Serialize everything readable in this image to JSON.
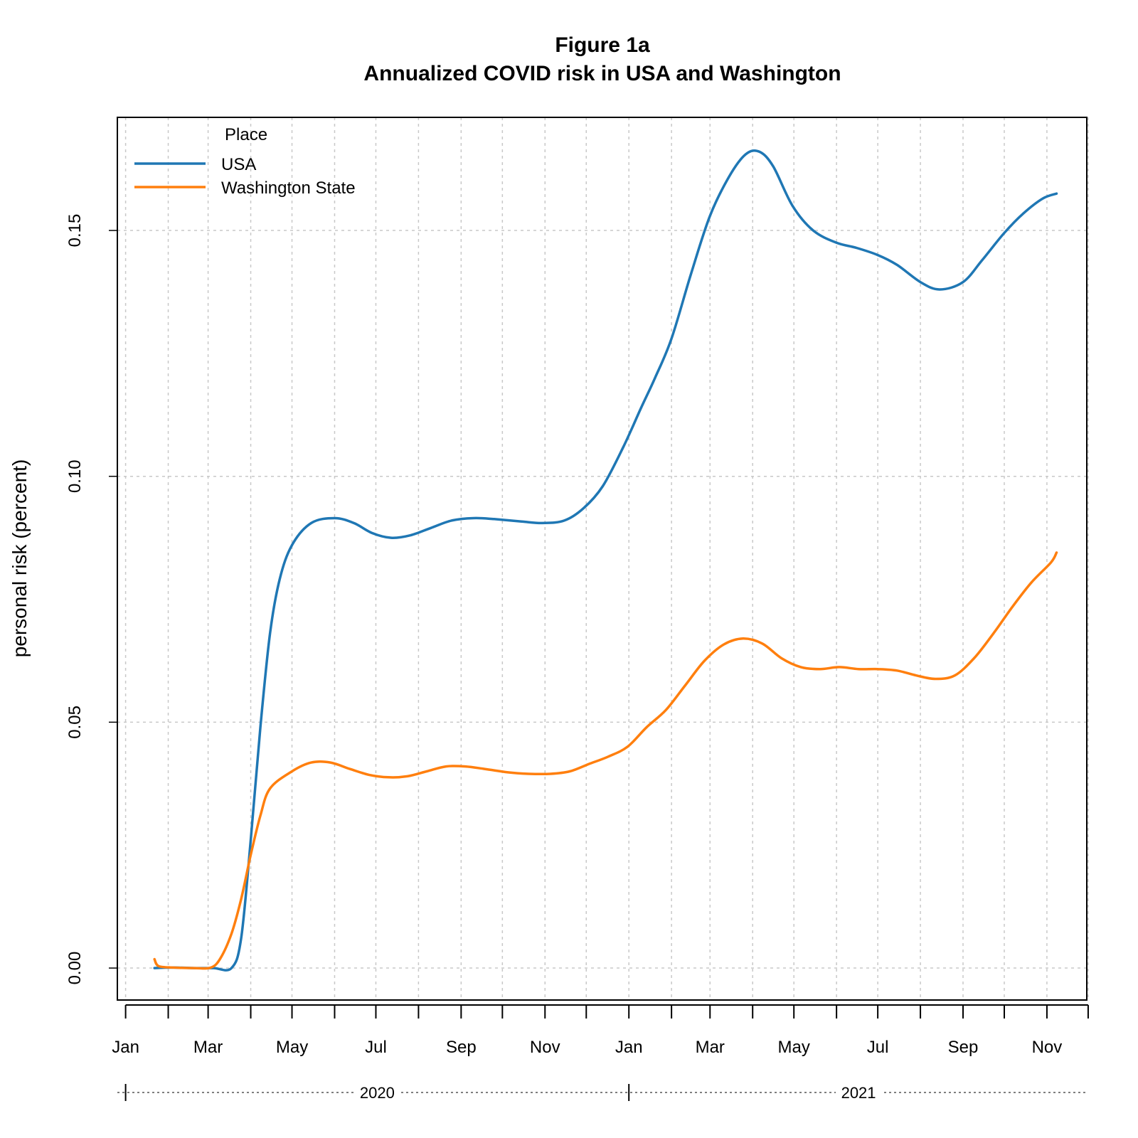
{
  "chart_data": {
    "type": "line",
    "title": "Figure 1a",
    "subtitle": "Annualized COVID risk in USA and Washington",
    "ylabel": "personal risk (percent)",
    "xlabel": "",
    "ylim": [
      -0.0065,
      0.173
    ],
    "xlim": [
      "2019-12-26",
      "2021-11-30"
    ],
    "y_ticks": [
      {
        "value": 0.0,
        "label": "0.00"
      },
      {
        "value": 0.05,
        "label": "0.05"
      },
      {
        "value": 0.1,
        "label": "0.10"
      },
      {
        "value": 0.15,
        "label": "0.15"
      }
    ],
    "x_ticks": [
      {
        "date": "2020-01-01",
        "label": "Jan"
      },
      {
        "date": "2020-02-01",
        "label": ""
      },
      {
        "date": "2020-03-01",
        "label": "Mar"
      },
      {
        "date": "2020-04-01",
        "label": ""
      },
      {
        "date": "2020-05-01",
        "label": "May"
      },
      {
        "date": "2020-06-01",
        "label": ""
      },
      {
        "date": "2020-07-01",
        "label": "Jul"
      },
      {
        "date": "2020-08-01",
        "label": ""
      },
      {
        "date": "2020-09-01",
        "label": "Sep"
      },
      {
        "date": "2020-10-01",
        "label": ""
      },
      {
        "date": "2020-11-01",
        "label": "Nov"
      },
      {
        "date": "2020-12-01",
        "label": ""
      },
      {
        "date": "2021-01-01",
        "label": "Jan"
      },
      {
        "date": "2021-02-01",
        "label": ""
      },
      {
        "date": "2021-03-01",
        "label": "Mar"
      },
      {
        "date": "2021-04-01",
        "label": ""
      },
      {
        "date": "2021-05-01",
        "label": "May"
      },
      {
        "date": "2021-06-01",
        "label": ""
      },
      {
        "date": "2021-07-01",
        "label": "Jul"
      },
      {
        "date": "2021-08-01",
        "label": ""
      },
      {
        "date": "2021-09-01",
        "label": "Sep"
      },
      {
        "date": "2021-10-01",
        "label": ""
      },
      {
        "date": "2021-11-01",
        "label": "Nov"
      },
      {
        "date": "2021-12-01",
        "label": ""
      }
    ],
    "years": [
      {
        "label": "2020",
        "start": "2020-01-01",
        "end": "2021-01-01"
      },
      {
        "label": "2021",
        "start": "2021-01-01",
        "end": "2021-12-01"
      }
    ],
    "grid": true,
    "legend": {
      "title": "Place",
      "position": "top-left"
    },
    "series": [
      {
        "name": "USA",
        "color": "#1f77b4",
        "points": [
          [
            "2020-01-22",
            0.0
          ],
          [
            "2020-02-05",
            0.0001
          ],
          [
            "2020-02-20",
            0.0
          ],
          [
            "2020-03-05",
            0.0
          ],
          [
            "2020-03-18",
            0.0
          ],
          [
            "2020-03-25",
            0.006
          ],
          [
            "2020-04-01",
            0.026
          ],
          [
            "2020-04-08",
            0.049
          ],
          [
            "2020-04-15",
            0.068
          ],
          [
            "2020-04-22",
            0.079
          ],
          [
            "2020-05-01",
            0.086
          ],
          [
            "2020-05-15",
            0.0905
          ],
          [
            "2020-06-01",
            0.0915
          ],
          [
            "2020-06-15",
            0.0905
          ],
          [
            "2020-06-28",
            0.0885
          ],
          [
            "2020-07-12",
            0.0875
          ],
          [
            "2020-07-26",
            0.088
          ],
          [
            "2020-08-10",
            0.0895
          ],
          [
            "2020-08-25",
            0.091
          ],
          [
            "2020-09-10",
            0.0915
          ],
          [
            "2020-09-25",
            0.0913
          ],
          [
            "2020-10-15",
            0.0908
          ],
          [
            "2020-10-30",
            0.0905
          ],
          [
            "2020-11-15",
            0.091
          ],
          [
            "2020-11-29",
            0.0935
          ],
          [
            "2020-12-13",
            0.098
          ],
          [
            "2020-12-28",
            0.106
          ],
          [
            "2021-01-10",
            0.114
          ],
          [
            "2021-01-20",
            0.12
          ],
          [
            "2021-02-01",
            0.128
          ],
          [
            "2021-02-15",
            0.141
          ],
          [
            "2021-03-01",
            0.153
          ],
          [
            "2021-03-15",
            0.161
          ],
          [
            "2021-03-27",
            0.1655
          ],
          [
            "2021-04-06",
            0.166
          ],
          [
            "2021-04-16",
            0.163
          ],
          [
            "2021-04-30",
            0.155
          ],
          [
            "2021-05-15",
            0.15
          ],
          [
            "2021-06-01",
            0.1475
          ],
          [
            "2021-06-15",
            0.1465
          ],
          [
            "2021-07-01",
            0.145
          ],
          [
            "2021-07-15",
            0.143
          ],
          [
            "2021-08-01",
            0.1395
          ],
          [
            "2021-08-15",
            0.138
          ],
          [
            "2021-09-01",
            0.1395
          ],
          [
            "2021-09-15",
            0.144
          ],
          [
            "2021-10-01",
            0.1495
          ],
          [
            "2021-10-15",
            0.1535
          ],
          [
            "2021-10-29",
            0.1565
          ],
          [
            "2021-11-08",
            0.1575
          ]
        ]
      },
      {
        "name": "Washington State",
        "color": "#ff7f0e",
        "points": [
          [
            "2020-01-22",
            0.0018
          ],
          [
            "2020-01-25",
            0.0004
          ],
          [
            "2020-02-05",
            0.0001
          ],
          [
            "2020-02-20",
            0.0
          ],
          [
            "2020-03-03",
            0.0001
          ],
          [
            "2020-03-10",
            0.002
          ],
          [
            "2020-03-18",
            0.007
          ],
          [
            "2020-03-25",
            0.014
          ],
          [
            "2020-04-01",
            0.023
          ],
          [
            "2020-04-08",
            0.031
          ],
          [
            "2020-04-15",
            0.0365
          ],
          [
            "2020-05-01",
            0.04
          ],
          [
            "2020-05-15",
            0.0418
          ],
          [
            "2020-05-29",
            0.0418
          ],
          [
            "2020-06-12",
            0.0405
          ],
          [
            "2020-06-26",
            0.0393
          ],
          [
            "2020-07-10",
            0.0388
          ],
          [
            "2020-07-24",
            0.039
          ],
          [
            "2020-08-07",
            0.04
          ],
          [
            "2020-08-21",
            0.041
          ],
          [
            "2020-09-04",
            0.041
          ],
          [
            "2020-09-18",
            0.0405
          ],
          [
            "2020-10-05",
            0.0398
          ],
          [
            "2020-10-20",
            0.0395
          ],
          [
            "2020-11-05",
            0.0395
          ],
          [
            "2020-11-19",
            0.04
          ],
          [
            "2020-12-03",
            0.0415
          ],
          [
            "2020-12-17",
            0.043
          ],
          [
            "2020-12-31",
            0.045
          ],
          [
            "2021-01-14",
            0.049
          ],
          [
            "2021-01-28",
            0.0525
          ],
          [
            "2021-02-11",
            0.0575
          ],
          [
            "2021-02-25",
            0.0625
          ],
          [
            "2021-03-11",
            0.0658
          ],
          [
            "2021-03-25",
            0.067
          ],
          [
            "2021-04-08",
            0.066
          ],
          [
            "2021-04-22",
            0.063
          ],
          [
            "2021-05-06",
            0.0612
          ],
          [
            "2021-05-20",
            0.0608
          ],
          [
            "2021-06-03",
            0.0612
          ],
          [
            "2021-06-17",
            0.0608
          ],
          [
            "2021-07-01",
            0.0608
          ],
          [
            "2021-07-15",
            0.0605
          ],
          [
            "2021-07-29",
            0.0595
          ],
          [
            "2021-08-12",
            0.0588
          ],
          [
            "2021-08-26",
            0.0595
          ],
          [
            "2021-09-09",
            0.063
          ],
          [
            "2021-09-23",
            0.068
          ],
          [
            "2021-10-07",
            0.0735
          ],
          [
            "2021-10-21",
            0.0785
          ],
          [
            "2021-11-04",
            0.0825
          ],
          [
            "2021-11-08",
            0.0845
          ]
        ]
      }
    ]
  }
}
